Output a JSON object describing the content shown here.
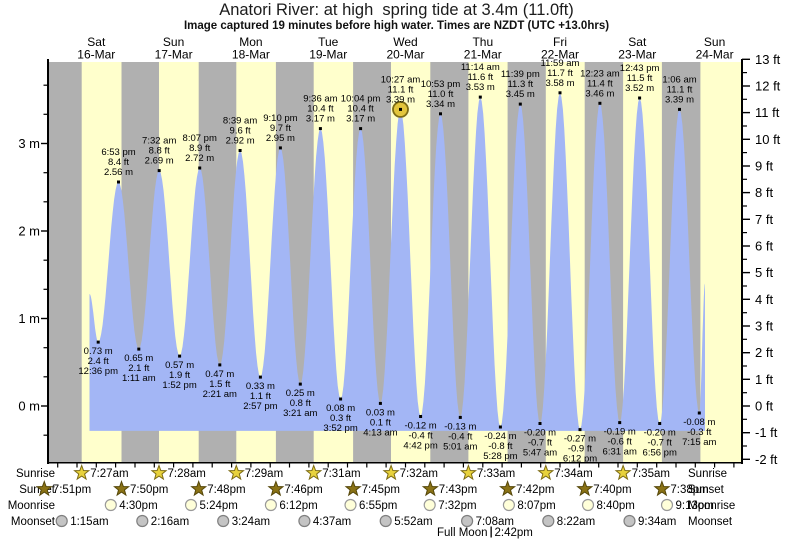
{
  "title": "Anatori River: at high  spring tide at 3.4m (11.0ft)",
  "subtitle": "Image captured 19 minutes before high water. Times are NZDT (UTC +13.0hrs)",
  "colors": {
    "day_band": "#ffffcc",
    "night_band": "#b0b0b0",
    "tide_fill": "#a3b6f5",
    "day_label": "#ff3333",
    "axis": "#000000",
    "annotation_text": "#000000",
    "marker_fill": "#e3c53c",
    "marker_ring": "#7d6c14",
    "sunrise_star_fill": "#e8d23c",
    "sunrise_star_stroke": "#7d6c14",
    "sunset_star_fill": "#8a7215",
    "sunset_star_stroke": "#55470a",
    "moonrise_fill": "#ffffd9",
    "moonrise_stroke": "#999999",
    "moonset_fill": "#c4c4c4",
    "moonset_stroke": "#7f7f7f"
  },
  "chart_data": {
    "type": "area",
    "title": "Anatori River: at high  spring tide at 3.4m (11.0ft)",
    "subtitle": "Image captured 19 minutes before high water. Times are NZDT (UTC +13.0hrs)",
    "y_unit_left": "m",
    "y_unit_right": "ft",
    "ylim_m": [
      -0.66,
      3.99
    ],
    "grid": false,
    "y_ticks_m": [
      {
        "v": 3,
        "label": "3 m"
      },
      {
        "v": 2,
        "label": "2 m"
      },
      {
        "v": 1,
        "label": "1 m"
      },
      {
        "v": 0,
        "label": "0 m"
      }
    ],
    "y_ticks_ft": [
      {
        "v": 13,
        "label": "13 ft"
      },
      {
        "v": 12,
        "label": "12 ft"
      },
      {
        "v": 11,
        "label": "11 ft"
      },
      {
        "v": 10,
        "label": "10 ft"
      },
      {
        "v": 9,
        "label": "9 ft"
      },
      {
        "v": 8,
        "label": "8 ft"
      },
      {
        "v": 7,
        "label": "7 ft"
      },
      {
        "v": 6,
        "label": "6 ft"
      },
      {
        "v": 5,
        "label": "5 ft"
      },
      {
        "v": 4,
        "label": "4 ft"
      },
      {
        "v": 3,
        "label": "3 ft"
      },
      {
        "v": 2,
        "label": "2 ft"
      },
      {
        "v": 1,
        "label": "1 ft"
      },
      {
        "v": 0,
        "label": "0 ft"
      },
      {
        "v": -1,
        "label": "-1 ft"
      },
      {
        "v": -2,
        "label": "-2 ft"
      }
    ],
    "days": [
      {
        "dow": "Sat",
        "date": "16-Mar",
        "t_noon": 15
      },
      {
        "dow": "Sun",
        "date": "17-Mar",
        "t_noon": 39
      },
      {
        "dow": "Mon",
        "date": "18-Mar",
        "t_noon": 63
      },
      {
        "dow": "Tue",
        "date": "19-Mar",
        "t_noon": 87
      },
      {
        "dow": "Wed",
        "date": "20-Mar",
        "t_noon": 111
      },
      {
        "dow": "Thu",
        "date": "21-Mar",
        "t_noon": 135
      },
      {
        "dow": "Fri",
        "date": "22-Mar",
        "t_noon": 159
      },
      {
        "dow": "Sat",
        "date": "23-Mar",
        "t_noon": 183
      },
      {
        "dow": "Sun",
        "date": "24-Mar",
        "t_noon": 207
      }
    ],
    "night_bands_t": [
      [
        0,
        10.45
      ],
      [
        22.833,
        34.467
      ],
      [
        46.8,
        58.483
      ],
      [
        70.767,
        82.517
      ],
      [
        94.75,
        106.533
      ],
      [
        118.717,
        130.55
      ],
      [
        142.7,
        154.567
      ],
      [
        166.667,
        178.583
      ],
      [
        190.633,
        202.6
      ]
    ],
    "series_start": {
      "t": 12.9,
      "m": 1.28
    },
    "series_end": {
      "t": 204.0,
      "m": 1.4
    },
    "events": [
      {
        "kind": "low",
        "t": 15.6,
        "m": 0.73,
        "lines": [
          "0.73 m",
          "2.4 ft",
          "12:36 pm"
        ]
      },
      {
        "kind": "high",
        "t": 21.883,
        "m": 2.56,
        "lines": [
          "6:53 pm",
          "8.4 ft",
          "2.56 m"
        ]
      },
      {
        "kind": "low",
        "t": 28.183,
        "m": 0.65,
        "lines": [
          "0.65 m",
          "2.1 ft",
          "1:11 am"
        ]
      },
      {
        "kind": "high",
        "t": 34.533,
        "m": 2.69,
        "lines": [
          "7:32 am",
          "8.8 ft",
          "2.69 m"
        ]
      },
      {
        "kind": "low",
        "t": 40.867,
        "m": 0.57,
        "lines": [
          "0.57 m",
          "1.9 ft",
          "1:52 pm"
        ]
      },
      {
        "kind": "high",
        "t": 47.117,
        "m": 2.72,
        "lines": [
          "8:07 pm",
          "8.9 ft",
          "2.72 m"
        ]
      },
      {
        "kind": "low",
        "t": 53.35,
        "m": 0.47,
        "lines": [
          "0.47 m",
          "1.5 ft",
          "2:21 am"
        ]
      },
      {
        "kind": "high",
        "t": 59.65,
        "m": 2.92,
        "lines": [
          "8:39 am",
          "9.6 ft",
          "2.92 m"
        ]
      },
      {
        "kind": "low",
        "t": 65.95,
        "m": 0.33,
        "lines": [
          "0.33 m",
          "1.1 ft",
          "2:57 pm"
        ]
      },
      {
        "kind": "high",
        "t": 72.167,
        "m": 2.95,
        "lines": [
          "9:10 pm",
          "9.7 ft",
          "2.95 m"
        ]
      },
      {
        "kind": "low",
        "t": 78.35,
        "m": 0.25,
        "lines": [
          "0.25 m",
          "0.8 ft",
          "3:21 am"
        ]
      },
      {
        "kind": "high",
        "t": 84.6,
        "m": 3.17,
        "lines": [
          "9:36 am",
          "10.4 ft",
          "3.17 m"
        ]
      },
      {
        "kind": "low",
        "t": 90.867,
        "m": 0.08,
        "lines": [
          "0.08 m",
          "0.3 ft",
          "3:52 pm"
        ]
      },
      {
        "kind": "high",
        "t": 97.067,
        "m": 3.17,
        "lines": [
          "10:04 pm",
          "10.4 ft",
          "3.17 m"
        ]
      },
      {
        "kind": "low",
        "t": 103.217,
        "m": 0.03,
        "lines": [
          "0.03 m",
          "0.1 ft",
          "4:13 am"
        ]
      },
      {
        "kind": "high",
        "t": 109.45,
        "m": 3.39,
        "lines": [
          "10:27 am",
          "11.1 ft",
          "3.39 m"
        ],
        "current": true
      },
      {
        "kind": "low",
        "t": 115.7,
        "m": -0.12,
        "lines": [
          "-0.12 m",
          "-0.4 ft",
          "4:42 pm"
        ]
      },
      {
        "kind": "high",
        "t": 121.883,
        "m": 3.34,
        "lines": [
          "10:53 pm",
          "11.0 ft",
          "3.34 m"
        ]
      },
      {
        "kind": "low",
        "t": 128.017,
        "m": -0.13,
        "lines": [
          "-0.13 m",
          "-0.4 ft",
          "5:01 am"
        ]
      },
      {
        "kind": "high",
        "t": 134.233,
        "m": 3.53,
        "lines": [
          "11:14 am",
          "11.6 ft",
          "3.53 m"
        ]
      },
      {
        "kind": "low",
        "t": 140.467,
        "m": -0.24,
        "lines": [
          "-0.24 m",
          "-0.8 ft",
          "5:28 pm"
        ]
      },
      {
        "kind": "high",
        "t": 146.65,
        "m": 3.45,
        "lines": [
          "11:39 pm",
          "11.3 ft",
          "3.45 m"
        ]
      },
      {
        "kind": "low",
        "t": 152.783,
        "m": -0.2,
        "lines": [
          "-0.20 m",
          "-0.7 ft",
          "5:47 am"
        ]
      },
      {
        "kind": "high",
        "t": 158.983,
        "m": 3.58,
        "lines": [
          "11:59 am",
          "11.7 ft",
          "3.58 m"
        ]
      },
      {
        "kind": "low",
        "t": 165.2,
        "m": -0.27,
        "lines": [
          "-0.27 m",
          "-0.9 ft",
          "6:12 pm"
        ]
      },
      {
        "kind": "high",
        "t": 171.383,
        "m": 3.46,
        "lines": [
          "12:23 am",
          "11.4 ft",
          "3.46 m"
        ]
      },
      {
        "kind": "low",
        "t": 177.517,
        "m": -0.19,
        "lines": [
          "-0.19 m",
          "-0.6 ft",
          "6:31 am"
        ]
      },
      {
        "kind": "high",
        "t": 183.717,
        "m": 3.52,
        "lines": [
          "12:43 pm",
          "11.5 ft",
          "3.52 m"
        ]
      },
      {
        "kind": "low",
        "t": 189.933,
        "m": -0.2,
        "lines": [
          "-0.20 m",
          "-0.7 ft",
          "6:56 pm"
        ]
      },
      {
        "kind": "high",
        "t": 196.1,
        "m": 3.39,
        "lines": [
          "1:06 am",
          "11.1 ft",
          "3.39 m"
        ]
      },
      {
        "kind": "low",
        "t": 202.25,
        "m": -0.08,
        "lines": [
          "-0.08 m",
          "-0.3 ft",
          "7:15 am"
        ]
      }
    ],
    "sun_moon": {
      "rows": [
        {
          "name": "sunrise",
          "label": "Sunrise",
          "icon": "sunrise-star-icon",
          "entries": [
            {
              "time": "7:27am",
              "t": 10.45
            },
            {
              "time": "7:28am",
              "t": 34.467
            },
            {
              "time": "7:29am",
              "t": 58.483
            },
            {
              "time": "7:31am",
              "t": 82.517
            },
            {
              "time": "7:32am",
              "t": 106.533
            },
            {
              "time": "7:33am",
              "t": 130.55
            },
            {
              "time": "7:34am",
              "t": 154.567
            },
            {
              "time": "7:35am",
              "t": 178.583
            }
          ]
        },
        {
          "name": "sunset",
          "label": "Sunset",
          "icon": "sunset-star-icon",
          "entries": [
            {
              "time": "7:51pm",
              "t": -1.15
            },
            {
              "time": "7:50pm",
              "t": 22.833
            },
            {
              "time": "7:48pm",
              "t": 46.8
            },
            {
              "time": "7:46pm",
              "t": 70.767
            },
            {
              "time": "7:45pm",
              "t": 94.75
            },
            {
              "time": "7:43pm",
              "t": 118.717
            },
            {
              "time": "7:42pm",
              "t": 142.7
            },
            {
              "time": "7:40pm",
              "t": 166.667
            },
            {
              "time": "7:38pm",
              "t": 190.633
            }
          ]
        },
        {
          "name": "moonrise",
          "label": "Moonrise",
          "icon": "moonrise-icon",
          "entries": [
            {
              "time": "4:30pm",
              "t": 19.5
            },
            {
              "time": "5:24pm",
              "t": 44.4
            },
            {
              "time": "6:12pm",
              "t": 69.2
            },
            {
              "time": "6:55pm",
              "t": 93.917
            },
            {
              "time": "7:32pm",
              "t": 118.533
            },
            {
              "time": "8:07pm",
              "t": 143.117
            },
            {
              "time": "8:40pm",
              "t": 167.667
            },
            {
              "time": "9:13pm",
              "t": 192.217
            }
          ]
        },
        {
          "name": "moonset",
          "label": "Moonset",
          "icon": "moonset-icon",
          "entries": [
            {
              "time": "1:15am",
              "t": 4.25
            },
            {
              "time": "2:16am",
              "t": 29.267
            },
            {
              "time": "3:24am",
              "t": 54.4
            },
            {
              "time": "4:37am",
              "t": 79.617
            },
            {
              "time": "5:52am",
              "t": 104.867
            },
            {
              "time": "7:08am",
              "t": 130.133
            },
            {
              "time": "8:22am",
              "t": 155.367
            },
            {
              "time": "9:34am",
              "t": 180.567
            }
          ]
        }
      ],
      "moon_phase": {
        "label": "Full Moon",
        "time": "2:42pm",
        "t": 137.7
      }
    }
  }
}
